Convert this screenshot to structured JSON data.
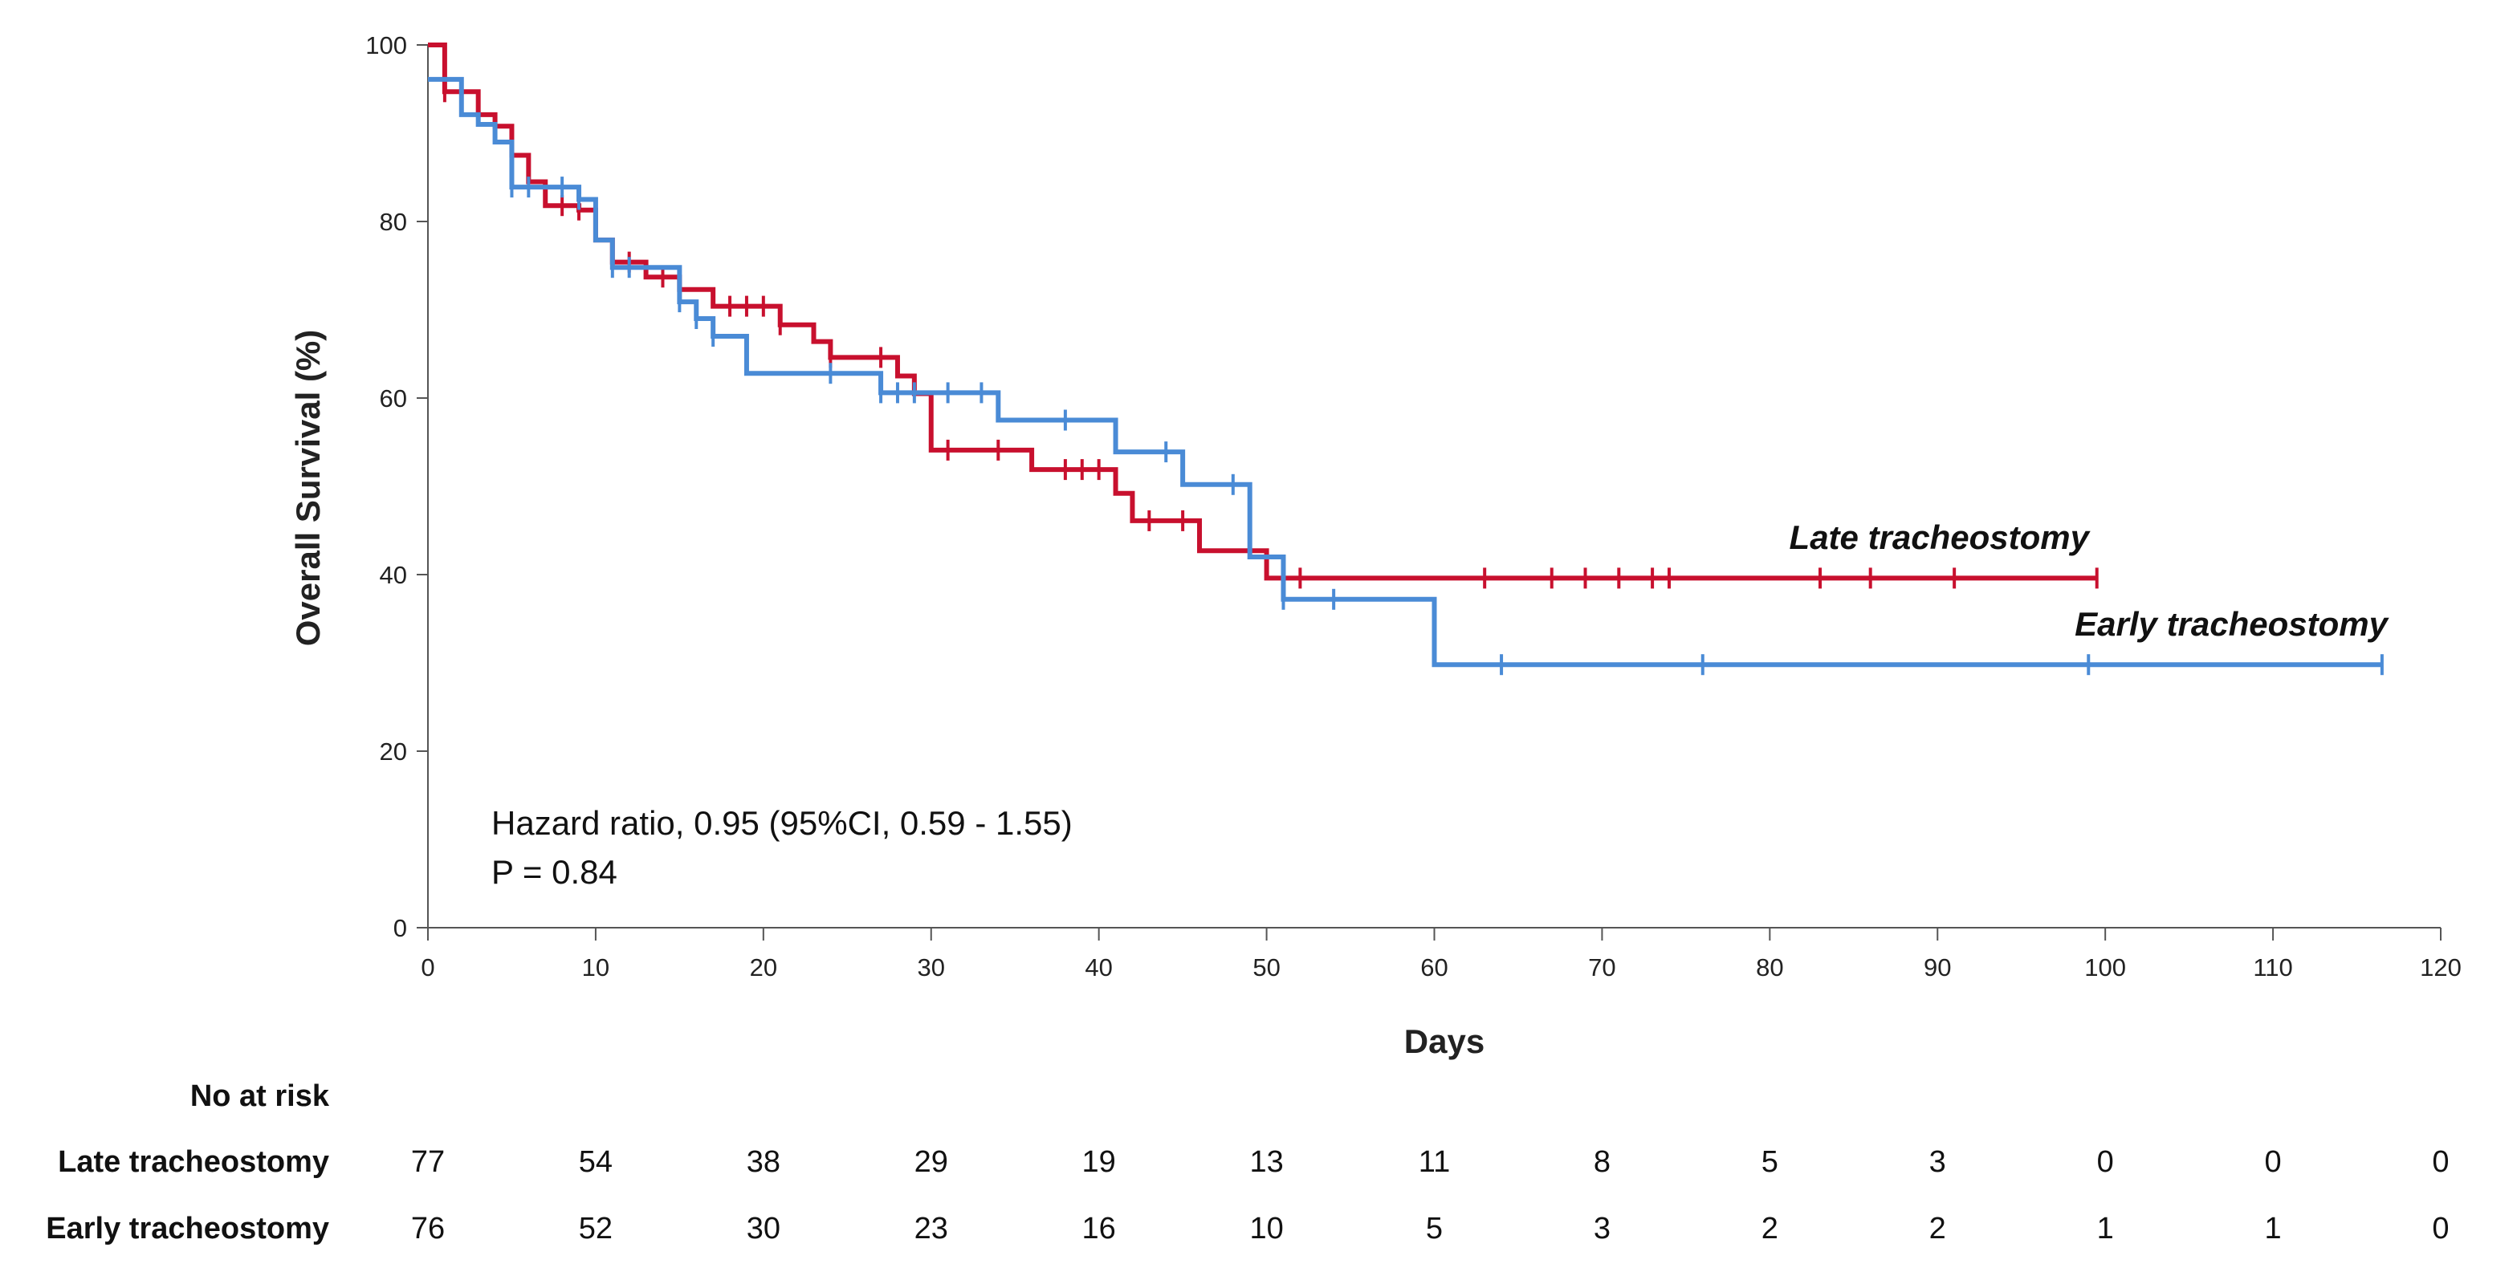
{
  "chart_data": {
    "type": "line",
    "subtype": "kaplan-meier",
    "xlabel": "Days",
    "ylabel": "Overall Survival (%)",
    "xlim": [
      0,
      120
    ],
    "ylim": [
      0,
      100
    ],
    "x_ticks": [
      0,
      10,
      20,
      30,
      40,
      50,
      60,
      70,
      80,
      90,
      100,
      110,
      120
    ],
    "y_ticks": [
      0,
      20,
      40,
      60,
      80,
      100
    ],
    "annotations": [
      "Hazard ratio, 0.95 (95%CI, 0.59 - 1.55)",
      "P = 0.84"
    ],
    "series": [
      {
        "name": "Late tracheostomy",
        "color": "#c8102e",
        "steps": [
          [
            0,
            100
          ],
          [
            1,
            94.7
          ],
          [
            3,
            92.1
          ],
          [
            4,
            90.8
          ],
          [
            5,
            87.5
          ],
          [
            6,
            84.5
          ],
          [
            7,
            81.8
          ],
          [
            9,
            81.3
          ],
          [
            10,
            77.9
          ],
          [
            11,
            75.4
          ],
          [
            13,
            73.7
          ],
          [
            15,
            72.3
          ],
          [
            17,
            70.4
          ],
          [
            21,
            68.3
          ],
          [
            23,
            66.4
          ],
          [
            24,
            64.6
          ],
          [
            28,
            62.5
          ],
          [
            29,
            60.5
          ],
          [
            30,
            54.1
          ],
          [
            36,
            51.9
          ],
          [
            41,
            49.2
          ],
          [
            42,
            46.1
          ],
          [
            46,
            42.7
          ],
          [
            50,
            39.6
          ],
          [
            99.5,
            39.6
          ]
        ],
        "censor": [
          [
            1,
            94.7
          ],
          [
            4,
            90.8
          ],
          [
            8,
            81.8
          ],
          [
            9,
            81.3
          ],
          [
            10,
            81.3
          ],
          [
            12,
            75.4
          ],
          [
            14,
            73.7
          ],
          [
            18,
            70.4
          ],
          [
            19,
            70.4
          ],
          [
            20,
            70.4
          ],
          [
            21,
            68.3
          ],
          [
            24,
            64.6
          ],
          [
            27,
            64.6
          ],
          [
            31,
            54.1
          ],
          [
            34,
            54.1
          ],
          [
            38,
            51.9
          ],
          [
            39,
            51.9
          ],
          [
            40,
            51.9
          ],
          [
            43,
            46.1
          ],
          [
            45,
            46.1
          ],
          [
            52,
            39.6
          ],
          [
            63,
            39.6
          ],
          [
            67,
            39.6
          ],
          [
            69,
            39.6
          ],
          [
            71,
            39.6
          ],
          [
            73,
            39.6
          ],
          [
            74,
            39.6
          ],
          [
            83,
            39.6
          ],
          [
            86,
            39.6
          ],
          [
            91,
            39.6
          ],
          [
            99.5,
            39.6
          ]
        ]
      },
      {
        "name": "Early tracheostomy",
        "color": "#4a8bd6",
        "steps": [
          [
            0,
            96.1
          ],
          [
            2,
            92.1
          ],
          [
            3,
            91.0
          ],
          [
            4,
            89.0
          ],
          [
            5,
            83.9
          ],
          [
            8,
            83.9
          ],
          [
            9,
            82.5
          ],
          [
            10,
            77.9
          ],
          [
            11,
            74.8
          ],
          [
            15,
            70.9
          ],
          [
            16,
            69.0
          ],
          [
            17,
            67.0
          ],
          [
            19,
            62.8
          ],
          [
            27,
            60.6
          ],
          [
            34,
            57.5
          ],
          [
            41,
            53.9
          ],
          [
            45,
            50.2
          ],
          [
            49,
            42.0
          ],
          [
            51,
            37.2
          ],
          [
            60,
            29.8
          ],
          [
            116.5,
            29.8
          ]
        ],
        "censor": [
          [
            5,
            83.9
          ],
          [
            6,
            83.9
          ],
          [
            8,
            83.9
          ],
          [
            9,
            82.5
          ],
          [
            11,
            74.8
          ],
          [
            12,
            74.8
          ],
          [
            15,
            70.9
          ],
          [
            16,
            69.0
          ],
          [
            17,
            67.0
          ],
          [
            24,
            62.8
          ],
          [
            27,
            60.6
          ],
          [
            28,
            60.6
          ],
          [
            29,
            60.6
          ],
          [
            31,
            60.6
          ],
          [
            33,
            60.6
          ],
          [
            38,
            57.5
          ],
          [
            44,
            53.9
          ],
          [
            48,
            50.2
          ],
          [
            51,
            37.2
          ],
          [
            54,
            37.2
          ],
          [
            64,
            29.8
          ],
          [
            76,
            29.8
          ],
          [
            99,
            29.8
          ],
          [
            116.5,
            29.8
          ]
        ]
      }
    ],
    "series_labels": [
      "Late tracheostomy",
      "Early tracheostomy"
    ]
  },
  "risk_table": {
    "header": "No at risk",
    "rows": [
      {
        "label": "Late tracheostomy",
        "values": [
          "77",
          "54",
          "38",
          "29",
          "19",
          "13",
          "11",
          "8",
          "5",
          "3",
          "0",
          "0",
          "0"
        ]
      },
      {
        "label": "Early tracheostomy",
        "values": [
          "76",
          "52",
          "30",
          "23",
          "16",
          "10",
          "5",
          "3",
          "2",
          "2",
          "1",
          "1",
          "0"
        ]
      }
    ]
  }
}
